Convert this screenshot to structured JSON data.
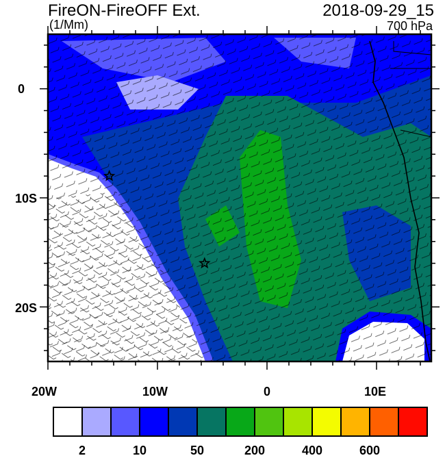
{
  "title": "FireON-FireOFF Ext.",
  "date": "2018-09-29_15",
  "units": "(1/Mm)",
  "level": "700 hPa",
  "lat_labels": [
    "0",
    "10S",
    "20S"
  ],
  "lon_labels": [
    "20W",
    "10W",
    "0",
    "10E"
  ],
  "extent": {
    "lon": [
      -20,
      15
    ],
    "lat": [
      -25,
      5
    ]
  },
  "markers": [
    {
      "type": "star",
      "lon": -14.4,
      "lat": -8.0
    },
    {
      "type": "star",
      "lon": -5.7,
      "lat": -16.0
    }
  ],
  "colorbar": {
    "colors": [
      "#ffffff",
      "#aaaaff",
      "#5858ff",
      "#0000ff",
      "#0038b4",
      "#067562",
      "#08a818",
      "#50c410",
      "#a8e400",
      "#f4fc00",
      "#ffb400",
      "#ff6000",
      "#ff0a00"
    ],
    "labels": [
      "2",
      "10",
      "50",
      "200",
      "400",
      "600"
    ]
  }
}
